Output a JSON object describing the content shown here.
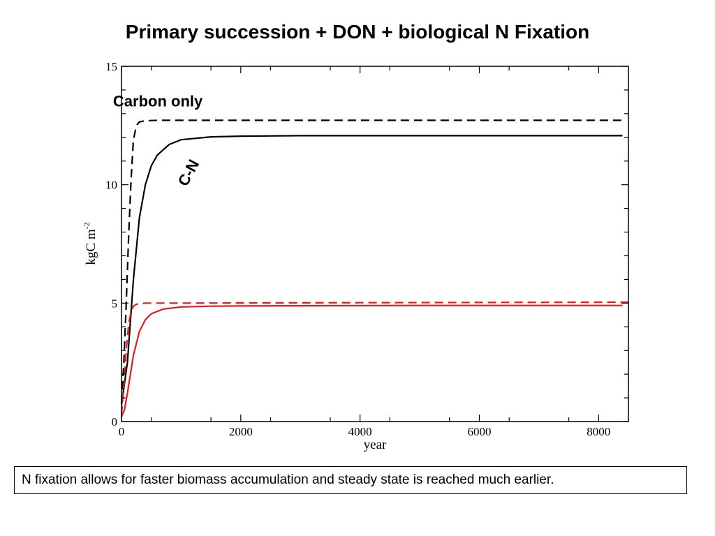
{
  "slide": {
    "title": "Primary succession + DON + biological N Fixation",
    "caption": "N fixation allows for faster biomass accumulation and steady state is reached much earlier."
  },
  "chart_data": {
    "type": "line",
    "title": "Primary succession + DON + biological N Fixation",
    "xlabel": "year",
    "ylabel": "kgC m",
    "ylabel_superscript": "-2",
    "xlim": [
      0,
      8500
    ],
    "ylim": [
      0,
      15
    ],
    "x_ticks": [
      0,
      2000,
      4000,
      6000,
      8000
    ],
    "x_tick_labels": [
      "0",
      "2000",
      "4000",
      "6000",
      "8000"
    ],
    "y_ticks": [
      0,
      5,
      10,
      15
    ],
    "y_tick_labels": [
      "0",
      "5",
      "10",
      "15"
    ],
    "grid": false,
    "series": [
      {
        "color": "#000000",
        "dash": true,
        "x": [
          0,
          40,
          80,
          120,
          160,
          200,
          250,
          300,
          400,
          600,
          1000,
          2000,
          4000,
          6000,
          8400
        ],
        "y": [
          0.8,
          2.5,
          5.0,
          7.8,
          10.2,
          11.9,
          12.5,
          12.65,
          12.7,
          12.72,
          12.72,
          12.72,
          12.72,
          12.72,
          12.72
        ]
      },
      {
        "color": "#000000",
        "dash": false,
        "x": [
          0,
          100,
          200,
          300,
          400,
          500,
          600,
          800,
          1000,
          1500,
          2000,
          3000,
          4000,
          6000,
          8400
        ],
        "y": [
          0.7,
          2.5,
          6.0,
          8.6,
          10.0,
          10.8,
          11.25,
          11.7,
          11.9,
          12.02,
          12.05,
          12.07,
          12.07,
          12.07,
          12.07
        ]
      },
      {
        "color": "#e41a1c",
        "dash": true,
        "x": [
          0,
          40,
          80,
          120,
          160,
          200,
          250,
          300,
          400,
          1000,
          4000,
          8500
        ],
        "y": [
          0.3,
          1.5,
          3.0,
          4.1,
          4.65,
          4.87,
          4.95,
          4.98,
          5.0,
          5.0,
          5.02,
          5.04
        ]
      },
      {
        "color": "#e41a1c",
        "dash": false,
        "x": [
          0,
          50,
          100,
          150,
          200,
          300,
          400,
          500,
          700,
          1000,
          1500,
          2000,
          3000,
          5000,
          8400
        ],
        "y": [
          0.2,
          0.5,
          1.2,
          2.0,
          2.8,
          3.8,
          4.3,
          4.55,
          4.75,
          4.84,
          4.87,
          4.88,
          4.89,
          4.9,
          4.9
        ]
      }
    ],
    "annotations": [
      {
        "text": "Carbon only",
        "x": 610,
        "y": 13.3,
        "rotation": 0
      },
      {
        "text": "C-N",
        "x": 1200,
        "y": 10.4,
        "rotation": -62
      }
    ]
  }
}
